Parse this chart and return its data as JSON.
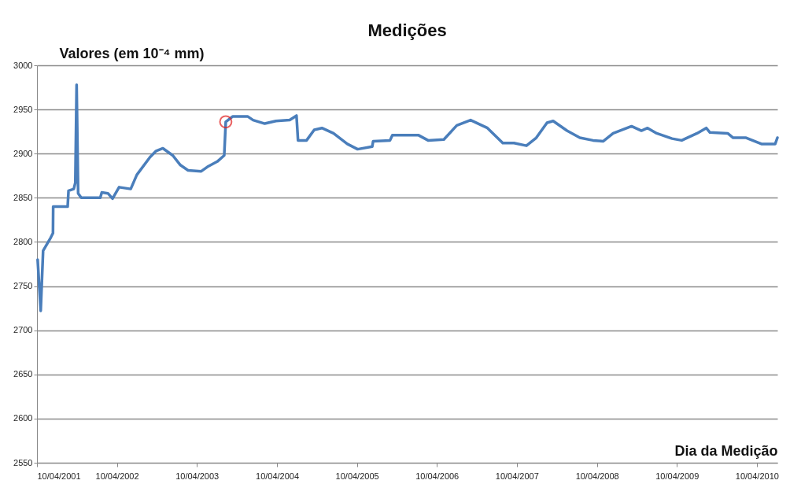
{
  "chart_data": {
    "type": "line",
    "title": "Medições",
    "xlabel": "Dia da Medição",
    "ylabel": "Valores (em 10⁻⁴ mm)",
    "grid": "y",
    "xlim": [
      "2001-04-10",
      "2010-07-13"
    ],
    "xticks": [
      {
        "value": "2001-04-10",
        "label": "10/04/2001"
      },
      {
        "value": "2002-04-10",
        "label": "10/04/2002"
      },
      {
        "value": "2003-04-10",
        "label": "10/04/2003"
      },
      {
        "value": "2004-04-10",
        "label": "10/04/2004"
      },
      {
        "value": "2005-04-10",
        "label": "10/04/2005"
      },
      {
        "value": "2006-04-10",
        "label": "10/04/2006"
      },
      {
        "value": "2007-04-10",
        "label": "10/04/2007"
      },
      {
        "value": "2008-04-10",
        "label": "10/04/2008"
      },
      {
        "value": "2009-04-10",
        "label": "10/04/2009"
      },
      {
        "value": "2010-04-10",
        "label": "10/04/2010"
      }
    ],
    "ylim": [
      2550,
      3000
    ],
    "yticks": [
      2550,
      2600,
      2650,
      2700,
      2750,
      2800,
      2850,
      2900,
      2950,
      3000
    ],
    "series": [
      {
        "color": "#4a7ebb",
        "marker": "none",
        "line_style": "solid",
        "x": [
          "2001-04-13",
          "2001-04-27",
          "2001-05-08",
          "2001-06-12",
          "2001-06-22",
          "2001-06-23",
          "2001-08-28",
          "2001-09-01",
          "2001-09-25",
          "2001-10-02",
          "2001-10-08",
          "2001-10-15",
          "2001-10-29",
          "2002-01-24",
          "2002-01-31",
          "2002-02-28",
          "2002-03-21",
          "2002-04-20",
          "2002-06-12",
          "2002-07-10",
          "2002-09-08",
          "2002-10-06",
          "2002-11-06",
          "2002-12-21",
          "2003-01-25",
          "2003-03-01",
          "2003-04-30",
          "2003-05-28",
          "2003-07-12",
          "2003-08-13",
          "2003-08-20",
          "2003-09-20",
          "2003-11-29",
          "2003-12-23",
          "2004-02-14",
          "2004-04-05",
          "2004-06-07",
          "2004-07-08",
          "2004-07-15",
          "2004-08-23",
          "2004-09-27",
          "2004-11-01",
          "2004-12-24",
          "2005-02-25",
          "2005-04-13",
          "2005-06-19",
          "2005-06-23",
          "2005-09-08",
          "2005-09-19",
          "2005-12-11",
          "2006-01-15",
          "2006-03-01",
          "2006-05-12",
          "2006-07-10",
          "2006-09-11",
          "2006-11-27",
          "2007-02-05",
          "2007-03-28",
          "2007-05-24",
          "2007-07-08",
          "2007-08-26",
          "2007-09-23",
          "2007-11-25",
          "2008-01-23",
          "2008-03-23",
          "2008-05-08",
          "2008-06-23",
          "2008-09-15",
          "2008-10-30",
          "2008-11-27",
          "2009-01-08",
          "2009-03-19",
          "2009-05-02",
          "2009-07-11",
          "2009-08-22",
          "2009-09-08",
          "2009-11-28",
          "2009-12-23",
          "2010-02-20",
          "2010-05-01",
          "2010-07-03",
          "2010-07-13"
        ],
        "values": [
          2780,
          2722,
          2790,
          2805,
          2810,
          2840,
          2840,
          2858,
          2860,
          2867,
          2978,
          2855,
          2850,
          2850,
          2856,
          2855,
          2849,
          2862,
          2860,
          2876,
          2896,
          2903,
          2906,
          2898,
          2887,
          2881,
          2880,
          2885,
          2891,
          2898,
          2936,
          2942,
          2942,
          2938,
          2934,
          2937,
          2938,
          2943,
          2915,
          2915,
          2927,
          2929,
          2923,
          2911,
          2905,
          2908,
          2914,
          2915,
          2921,
          2921,
          2921,
          2915,
          2916,
          2932,
          2938,
          2929,
          2912,
          2912,
          2909,
          2918,
          2935,
          2937,
          2926,
          2918,
          2915,
          2914,
          2923,
          2931,
          2926,
          2929,
          2923,
          2917,
          2915,
          2923,
          2929,
          2924,
          2923,
          2918,
          2918,
          2911,
          2911,
          2918
        ]
      },
      {
        "type": "scatter",
        "color": "#e02020",
        "marker": "circle",
        "x": [
          "2003-08-20"
        ],
        "values": [
          2936
        ]
      }
    ]
  }
}
